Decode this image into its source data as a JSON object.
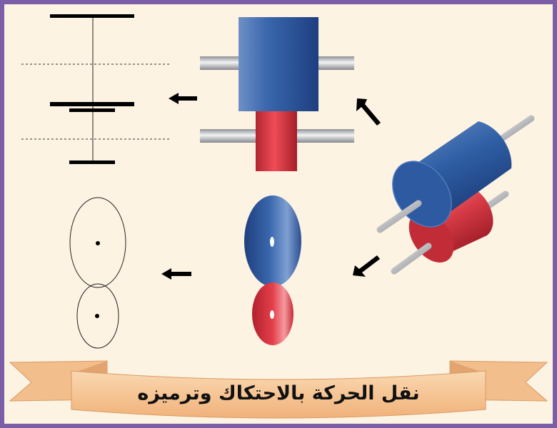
{
  "caption": {
    "text": "نقل الحركة بالاحتكاك وترميزه"
  },
  "colors": {
    "frame": "#7b5ea7",
    "background": "#fdf3e3",
    "drive_cylinder": "#2f5fa5",
    "driven_cylinder": "#d63a45",
    "shaft": "#b9bcc0",
    "ribbon": "#f5c99a",
    "arrow": "#000000",
    "symbol": "#000000"
  },
  "icons": [
    "arrow-left-icon",
    "arrow-up-right-icon",
    "arrow-down-left-icon"
  ]
}
